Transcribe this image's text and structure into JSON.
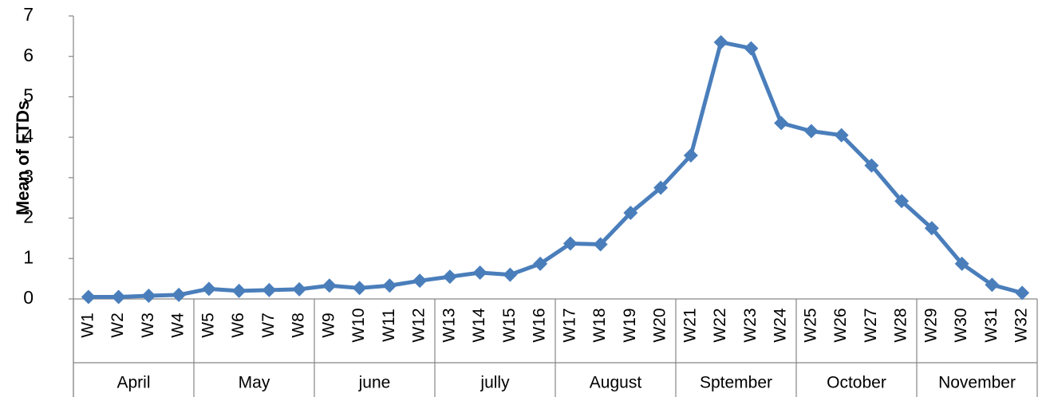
{
  "chart_data": {
    "type": "line",
    "y_label": "Mean of FTDs",
    "categories": [
      "W1",
      "W2",
      "W3",
      "W4",
      "W5",
      "W6",
      "W7",
      "W8",
      "W9",
      "W10",
      "W11",
      "W12",
      "W13",
      "W14",
      "W15",
      "W16",
      "W17",
      "W18",
      "W19",
      "W20",
      "W21",
      "W22",
      "W23",
      "W24",
      "W25",
      "W26",
      "W27",
      "W28",
      "W29",
      "W30",
      "W31",
      "W32"
    ],
    "groups": [
      "April",
      "May",
      "june",
      "jully",
      "August",
      "Sptember",
      "October",
      "November"
    ],
    "series": [
      {
        "name": "Mean of FTDs",
        "color": "#4a7ebb",
        "values": [
          0.05,
          0.05,
          0.08,
          0.1,
          0.25,
          0.2,
          0.22,
          0.24,
          0.33,
          0.27,
          0.33,
          0.45,
          0.55,
          0.65,
          0.6,
          0.87,
          1.37,
          1.35,
          2.13,
          2.75,
          3.55,
          6.35,
          6.2,
          4.35,
          4.15,
          4.05,
          3.3,
          2.42,
          1.75,
          0.87,
          0.35,
          0.15
        ]
      }
    ],
    "ylim": [
      0,
      7
    ],
    "yticks": [
      0,
      1,
      2,
      3,
      4,
      5,
      6,
      7
    ],
    "grid": false
  }
}
